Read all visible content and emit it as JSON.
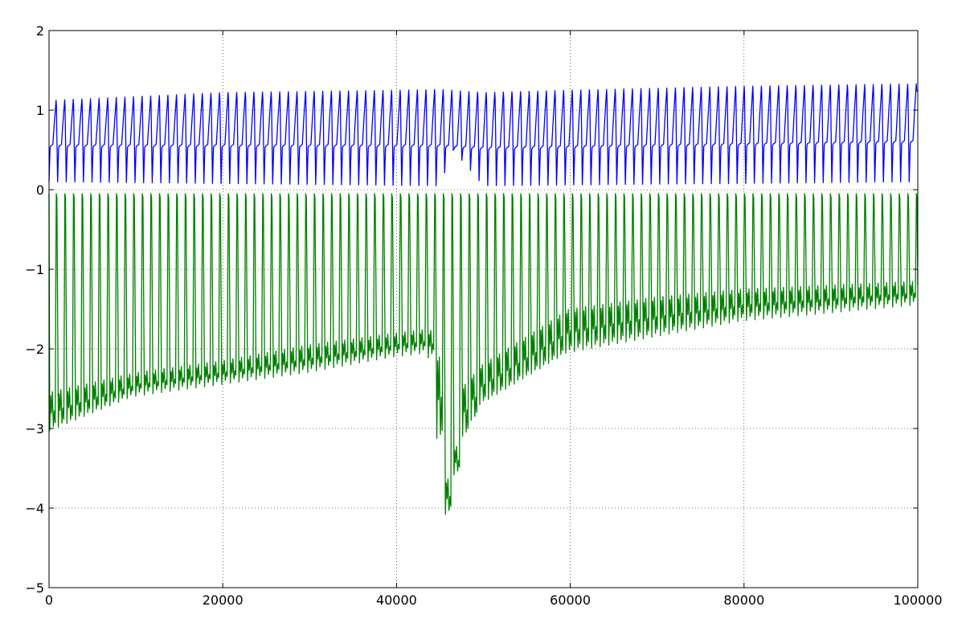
{
  "chart_data": {
    "type": "line",
    "title": "",
    "xlabel": "",
    "ylabel": "",
    "xlim": [
      0,
      100000
    ],
    "ylim": [
      -5,
      2
    ],
    "x_ticks": [
      0,
      20000,
      40000,
      60000,
      80000,
      100000
    ],
    "y_ticks": [
      -5,
      -4,
      -3,
      -2,
      -1,
      0,
      1,
      2
    ],
    "x_tick_labels": [
      "0",
      "20000",
      "40000",
      "60000",
      "80000",
      "100000"
    ],
    "y_tick_labels": [
      "−5",
      "−4",
      "−3",
      "−2",
      "−1",
      "0",
      "1",
      "2"
    ],
    "grid": true,
    "series": [
      {
        "color": "#0000ff",
        "style": "periodic sawtooth spikes, about 101 cycles over the x range",
        "cycles": 101,
        "peak": [
          [
            0,
            1.12
          ],
          [
            20000,
            1.22
          ],
          [
            40000,
            1.25
          ],
          [
            45000,
            1.26
          ],
          [
            50000,
            1.22
          ],
          [
            60000,
            1.25
          ],
          [
            80000,
            1.3
          ],
          [
            100000,
            1.33
          ]
        ],
        "shoulder": [
          [
            0,
            0.55
          ],
          [
            45000,
            0.55
          ],
          [
            50000,
            0.52
          ],
          [
            100000,
            0.6
          ]
        ],
        "trough": [
          [
            0,
            0.1
          ],
          [
            45000,
            0.05
          ],
          [
            46500,
            0.5
          ],
          [
            50000,
            0.05
          ],
          [
            100000,
            0.1
          ]
        ]
      },
      {
        "color": "#008000",
        "style": "periodic spikes toward zero, about 101 cycles over the x range",
        "cycles": 101,
        "top": [
          [
            0,
            -0.05
          ],
          [
            100000,
            -0.05
          ]
        ],
        "upper_envelope": [
          [
            0,
            -2.6
          ],
          [
            10000,
            -2.35
          ],
          [
            20000,
            -2.2
          ],
          [
            30000,
            -2.0
          ],
          [
            40000,
            -1.85
          ],
          [
            44000,
            -1.8
          ],
          [
            45500,
            -2.3
          ],
          [
            46000,
            -3.7
          ],
          [
            47000,
            -3.3
          ],
          [
            48000,
            -2.5
          ],
          [
            50000,
            -2.25
          ],
          [
            60000,
            -1.55
          ],
          [
            70000,
            -1.4
          ],
          [
            80000,
            -1.3
          ],
          [
            90000,
            -1.25
          ],
          [
            100000,
            -1.2
          ]
        ],
        "lower_envelope": [
          [
            0,
            -3.05
          ],
          [
            10000,
            -2.6
          ],
          [
            20000,
            -2.45
          ],
          [
            30000,
            -2.3
          ],
          [
            40000,
            -2.1
          ],
          [
            44000,
            -2.05
          ],
          [
            46000,
            -4.1
          ],
          [
            47000,
            -3.6
          ],
          [
            48000,
            -3.1
          ],
          [
            50000,
            -2.7
          ],
          [
            60000,
            -2.05
          ],
          [
            70000,
            -1.85
          ],
          [
            80000,
            -1.65
          ],
          [
            90000,
            -1.55
          ],
          [
            100000,
            -1.45
          ]
        ]
      }
    ]
  }
}
